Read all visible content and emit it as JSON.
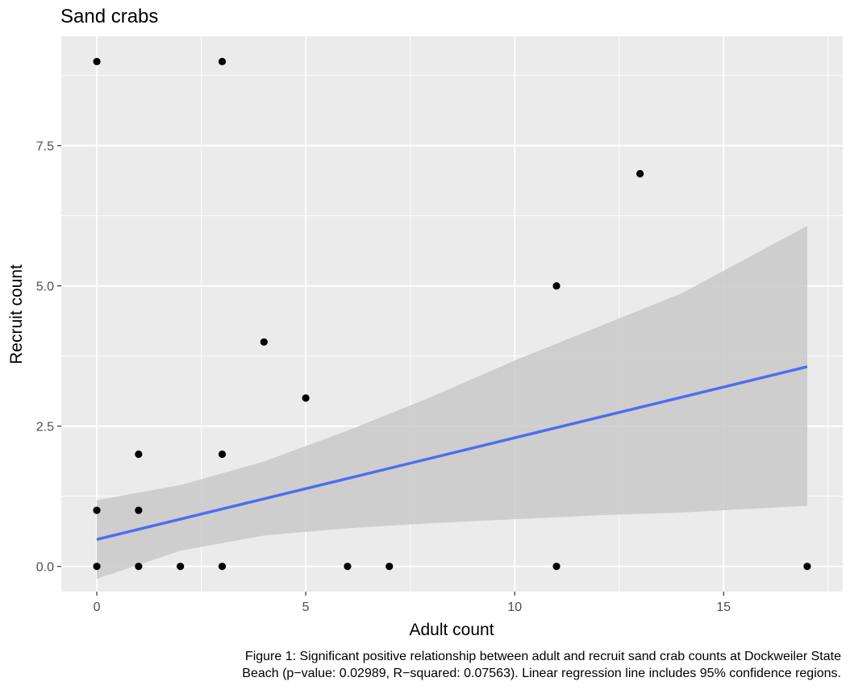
{
  "chart_data": {
    "type": "scatter",
    "title": "Sand crabs",
    "xlabel": "Adult count",
    "ylabel": "Recruit count",
    "xlim": [
      -0.85,
      17.85
    ],
    "ylim": [
      -0.45,
      9.45
    ],
    "x_ticks": [
      {
        "value": 0,
        "label": "0"
      },
      {
        "value": 5,
        "label": "5"
      },
      {
        "value": 10,
        "label": "10"
      },
      {
        "value": 15,
        "label": "15"
      }
    ],
    "y_ticks": [
      {
        "value": 0,
        "label": "0.0"
      },
      {
        "value": 2.5,
        "label": "2.5"
      },
      {
        "value": 5,
        "label": "5.0"
      },
      {
        "value": 7.5,
        "label": "7.5"
      }
    ],
    "grid": true,
    "legend": "none",
    "points": [
      {
        "x": 0,
        "y": 9
      },
      {
        "x": 3,
        "y": 9
      },
      {
        "x": 13,
        "y": 7
      },
      {
        "x": 11,
        "y": 5
      },
      {
        "x": 4,
        "y": 4
      },
      {
        "x": 5,
        "y": 3
      },
      {
        "x": 1,
        "y": 2
      },
      {
        "x": 3,
        "y": 2
      },
      {
        "x": 0,
        "y": 1
      },
      {
        "x": 1,
        "y": 1
      },
      {
        "x": 0,
        "y": 0
      },
      {
        "x": 1,
        "y": 0
      },
      {
        "x": 2,
        "y": 0
      },
      {
        "x": 3,
        "y": 0
      },
      {
        "x": 6,
        "y": 0
      },
      {
        "x": 7,
        "y": 0
      },
      {
        "x": 11,
        "y": 0
      },
      {
        "x": 17,
        "y": 0
      }
    ],
    "regression": {
      "x_start": 0,
      "y_start": 0.48,
      "x_end": 17,
      "y_end": 3.56
    },
    "confidence_band": [
      {
        "x": 0,
        "lower": -0.22,
        "upper": 1.18
      },
      {
        "x": 2,
        "lower": 0.28,
        "upper": 1.45
      },
      {
        "x": 4,
        "lower": 0.55,
        "upper": 1.87
      },
      {
        "x": 6,
        "lower": 0.68,
        "upper": 2.42
      },
      {
        "x": 8,
        "lower": 0.77,
        "upper": 3.02
      },
      {
        "x": 10,
        "lower": 0.84,
        "upper": 3.67
      },
      {
        "x": 12,
        "lower": 0.91,
        "upper": 4.27
      },
      {
        "x": 14,
        "lower": 0.96,
        "upper": 4.87
      },
      {
        "x": 17,
        "lower": 1.08,
        "upper": 6.07
      }
    ],
    "colors": {
      "panel": "#ebebeb",
      "grid": "#ffffff",
      "points": "#000000",
      "line": "#4c6ef0",
      "band": "#c9c9c9",
      "axis_text": "#4d4d4d"
    }
  },
  "caption": {
    "line1": "Figure 1: Significant positive relationship between adult and recruit sand crab counts at Dockweiler State",
    "line2": "Beach (p−value: 0.02989, R−squared: 0.07563). Linear regression line includes 95% confidence regions."
  }
}
